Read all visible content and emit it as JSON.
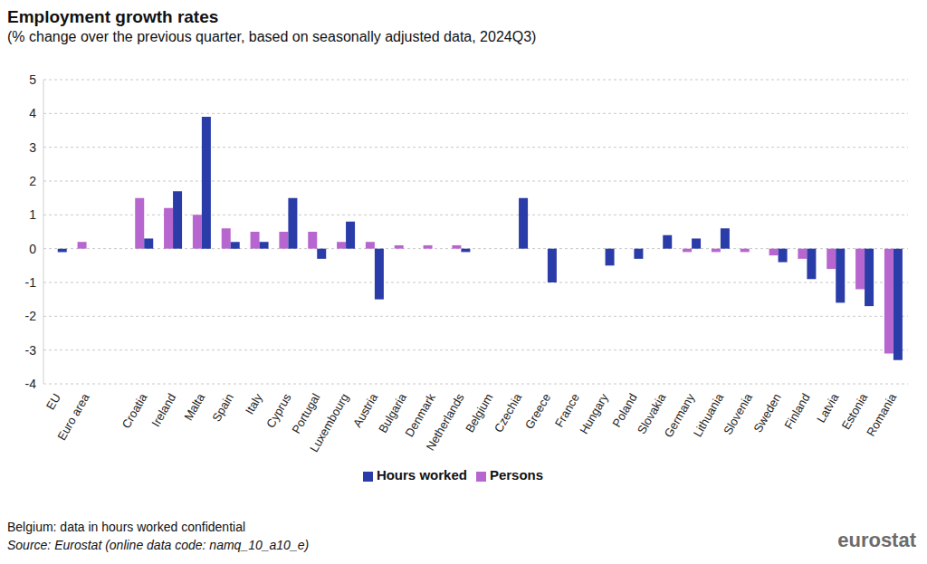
{
  "chart_data": {
    "type": "bar",
    "title": "Employment growth rates",
    "subtitle": "(% change over the previous quarter, based on seasonally adjusted data, 2024Q3)",
    "categories": [
      "EU",
      "Euro area",
      null,
      "Croatia",
      "Ireland",
      "Malta",
      "Spain",
      "Italy",
      "Cyprus",
      "Portugal",
      "Luxembourg",
      "Austria",
      "Bulgaria",
      "Denmark",
      "Netherlands",
      "Belgium",
      "Czechia",
      "Greece",
      "France",
      "Hungary",
      "Poland",
      "Slovakia",
      "Germany",
      "Lithuania",
      "Slovenia",
      "Sweden",
      "Finland",
      "Latvia",
      "Estonia",
      "Romania"
    ],
    "series": [
      {
        "name": "Persons",
        "color": "#b866cf",
        "values": [
          0.0,
          0.2,
          null,
          1.5,
          1.2,
          1.0,
          0.6,
          0.5,
          0.5,
          0.5,
          0.2,
          0.2,
          0.1,
          0.1,
          0.1,
          0.0,
          0.0,
          0.0,
          0.0,
          0.0,
          0.0,
          0.0,
          -0.1,
          -0.1,
          -0.1,
          -0.2,
          -0.3,
          -0.6,
          -1.2,
          -3.1
        ]
      },
      {
        "name": "Hours worked",
        "color": "#2a3ca8",
        "values": [
          -0.1,
          0.0,
          null,
          0.3,
          1.7,
          3.9,
          0.2,
          0.2,
          1.5,
          -0.3,
          0.8,
          -1.5,
          0.0,
          0.0,
          -0.1,
          null,
          1.5,
          -1.0,
          0.0,
          -0.5,
          -0.3,
          0.4,
          0.3,
          0.6,
          0.0,
          -0.4,
          -0.9,
          -1.6,
          -1.7,
          -3.3
        ]
      }
    ],
    "ylim": [
      -4,
      5
    ],
    "yticks": [
      -4,
      -3,
      -2,
      -1,
      0,
      1,
      2,
      3,
      4,
      5
    ],
    "grid": true,
    "legend": "bottom",
    "notes": [
      "Belgium: data in hours worked confidential"
    ],
    "source": "Source: Eurostat (online data code: namq_10_a10_e)",
    "brand": "eurostat"
  }
}
